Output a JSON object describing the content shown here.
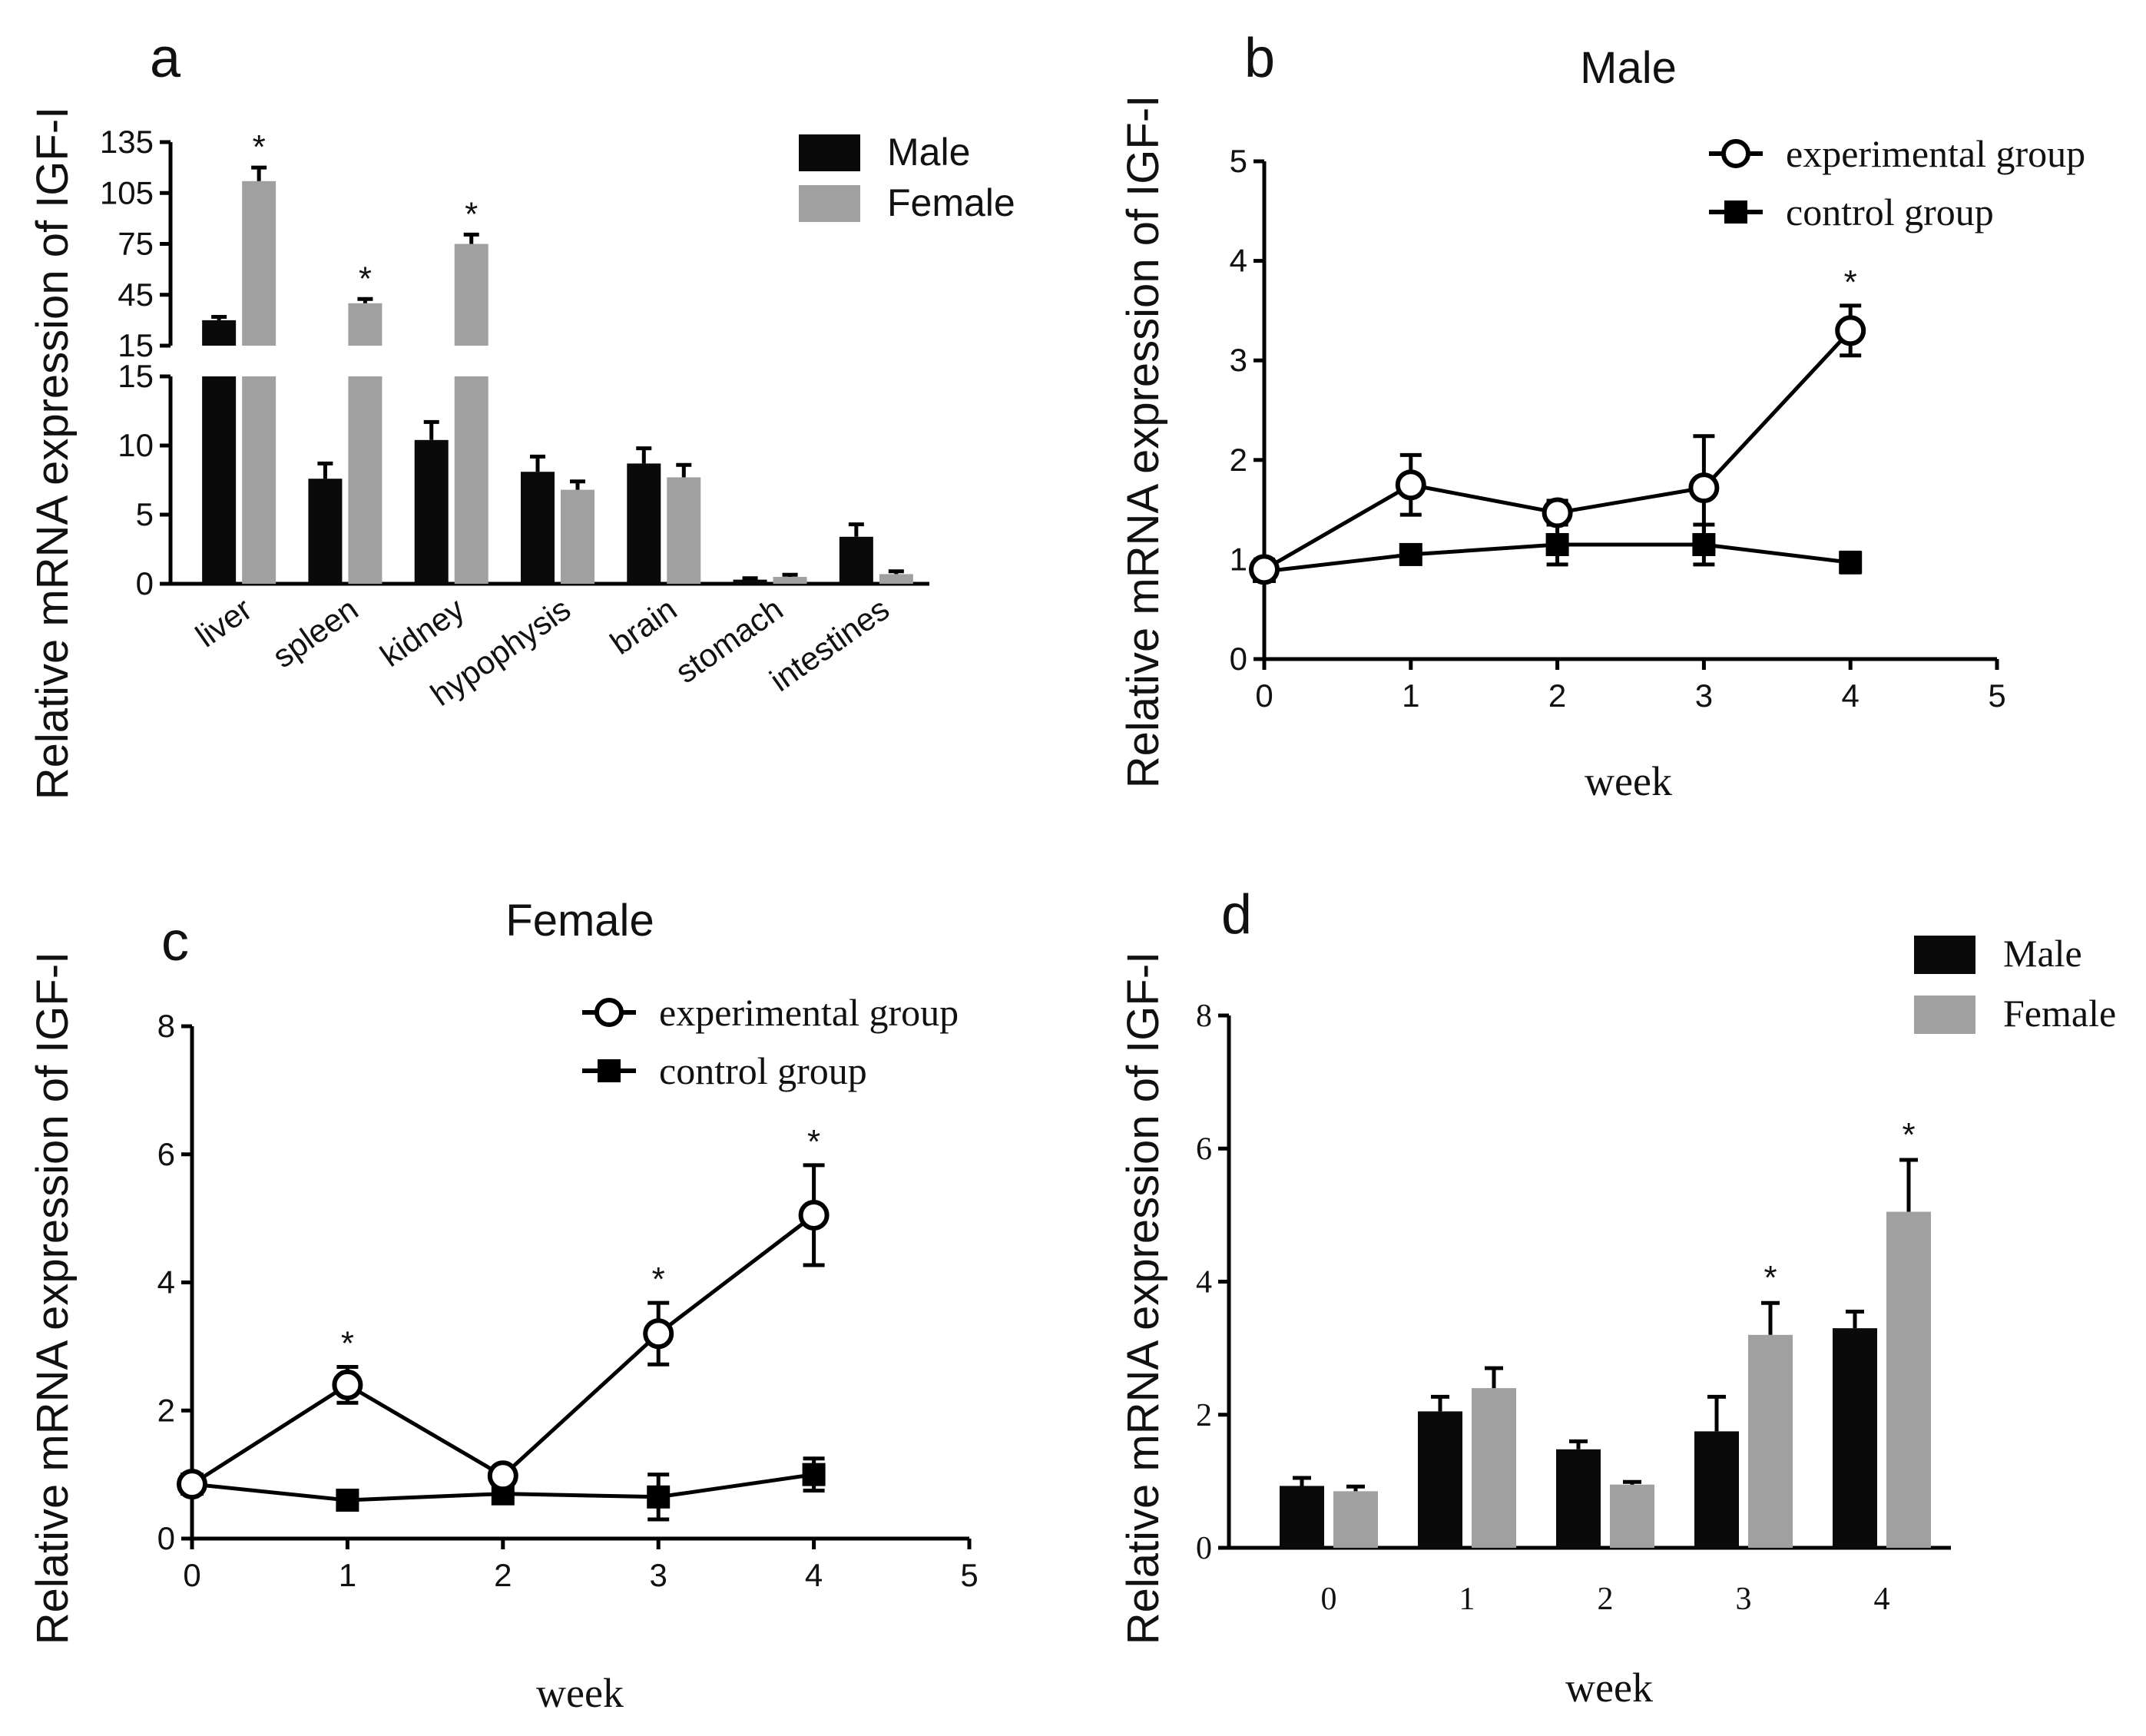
{
  "chart_data": [
    {
      "panel": "a",
      "type": "bar",
      "title": "",
      "ylabel": "Relative mRNA expression of IGF-I",
      "xlabel": "",
      "categories": [
        "liver",
        "spleen",
        "kidney",
        "hypophysis",
        "brain",
        "stomach",
        "intestines"
      ],
      "series": [
        {
          "name": "Male",
          "color": "#0a0a0a",
          "values": [
            30,
            7.6,
            10.4,
            8.1,
            8.7,
            0.3,
            3.4
          ],
          "errors": [
            2,
            1.1,
            1.3,
            1.1,
            1.1,
            0.1,
            0.9
          ]
        },
        {
          "name": "Female",
          "color": "#a0a0a0",
          "values": [
            112,
            40,
            75,
            6.8,
            7.7,
            0.5,
            0.7
          ],
          "errors": [
            8,
            2.5,
            5.5,
            0.6,
            0.9,
            0.15,
            0.2
          ]
        }
      ],
      "asterisks": [
        {
          "category": "liver",
          "series": "Female"
        },
        {
          "category": "spleen",
          "series": "Female"
        },
        {
          "category": "kidney",
          "series": "Female"
        }
      ],
      "yaxis_lower": {
        "range": [
          0,
          15
        ],
        "ticks": [
          "0",
          "5",
          "10",
          "15"
        ]
      },
      "yaxis_upper": {
        "range": [
          15,
          135
        ],
        "ticks": [
          "15",
          "45",
          "75",
          "105",
          "135"
        ]
      },
      "legend": "top-right"
    },
    {
      "panel": "b",
      "type": "line",
      "title": "Male",
      "ylabel": "Relative mRNA expression of IGF-I",
      "xlabel": "week",
      "xlim": [
        0,
        5
      ],
      "ylim": [
        0,
        5
      ],
      "xticks": [
        "0",
        "1",
        "2",
        "3",
        "4",
        "5"
      ],
      "yticks": [
        "0",
        "1",
        "2",
        "3",
        "4",
        "5"
      ],
      "series": [
        {
          "name": "experimental group",
          "marker": "open-circle",
          "x": [
            0,
            1,
            2,
            3,
            4
          ],
          "y": [
            0.9,
            1.75,
            1.47,
            1.72,
            3.3
          ],
          "errors": [
            0.1,
            0.3,
            0.12,
            0.52,
            0.25
          ]
        },
        {
          "name": "control group",
          "marker": "filled-square",
          "x": [
            0,
            1,
            2,
            3,
            4
          ],
          "y": [
            0.88,
            1.05,
            1.15,
            1.15,
            0.97
          ],
          "errors": [
            0.08,
            0.08,
            0.2,
            0.2,
            0.1
          ]
        }
      ],
      "asterisks": [
        {
          "x": 4,
          "series": "experimental group"
        }
      ],
      "legend": "top-right"
    },
    {
      "panel": "c",
      "type": "line",
      "title": "Female",
      "ylabel": "Relative mRNA expression of IGF-I",
      "xlabel": "week",
      "xlim": [
        0,
        5
      ],
      "ylim": [
        0,
        8
      ],
      "xticks": [
        "0",
        "1",
        "2",
        "3",
        "4",
        "5"
      ],
      "yticks": [
        "0",
        "2",
        "4",
        "6",
        "8"
      ],
      "series": [
        {
          "name": "experimental group",
          "marker": "open-circle",
          "x": [
            0,
            1,
            2,
            3,
            4
          ],
          "y": [
            0.85,
            2.4,
            0.98,
            3.2,
            5.05
          ],
          "errors": [
            0.1,
            0.28,
            0.1,
            0.48,
            0.78
          ]
        },
        {
          "name": "control group",
          "marker": "filled-square",
          "x": [
            0,
            1,
            2,
            3,
            4
          ],
          "y": [
            0.85,
            0.6,
            0.7,
            0.65,
            1.0
          ],
          "errors": [
            0.1,
            0.08,
            0.15,
            0.35,
            0.25
          ]
        }
      ],
      "asterisks": [
        {
          "x": 1,
          "series": "experimental group"
        },
        {
          "x": 3,
          "series": "experimental group"
        },
        {
          "x": 4,
          "series": "experimental group"
        }
      ],
      "legend": "top-right"
    },
    {
      "panel": "d",
      "type": "bar",
      "title": "",
      "ylabel": "Relative mRNA expression of IGF-I",
      "xlabel": "week",
      "ylim": [
        0,
        8
      ],
      "yticks": [
        "0",
        "2",
        "4",
        "6",
        "8"
      ],
      "categories": [
        "0",
        "1",
        "2",
        "3",
        "4"
      ],
      "series": [
        {
          "name": "Male",
          "color": "#0a0a0a",
          "values": [
            0.93,
            2.05,
            1.48,
            1.75,
            3.3
          ],
          "errors": [
            0.12,
            0.22,
            0.12,
            0.52,
            0.25
          ]
        },
        {
          "name": "Female",
          "color": "#a0a0a0",
          "values": [
            0.85,
            2.4,
            0.95,
            3.2,
            5.05
          ],
          "errors": [
            0.07,
            0.3,
            0.04,
            0.48,
            0.78
          ]
        }
      ],
      "asterisks": [
        {
          "category": "3",
          "series": "Female"
        },
        {
          "category": "4",
          "series": "Female"
        }
      ],
      "legend": "top-right"
    }
  ],
  "labels": {
    "panel_a": "a",
    "panel_b": "b",
    "panel_c": "c",
    "panel_d": "d",
    "star": "*"
  }
}
